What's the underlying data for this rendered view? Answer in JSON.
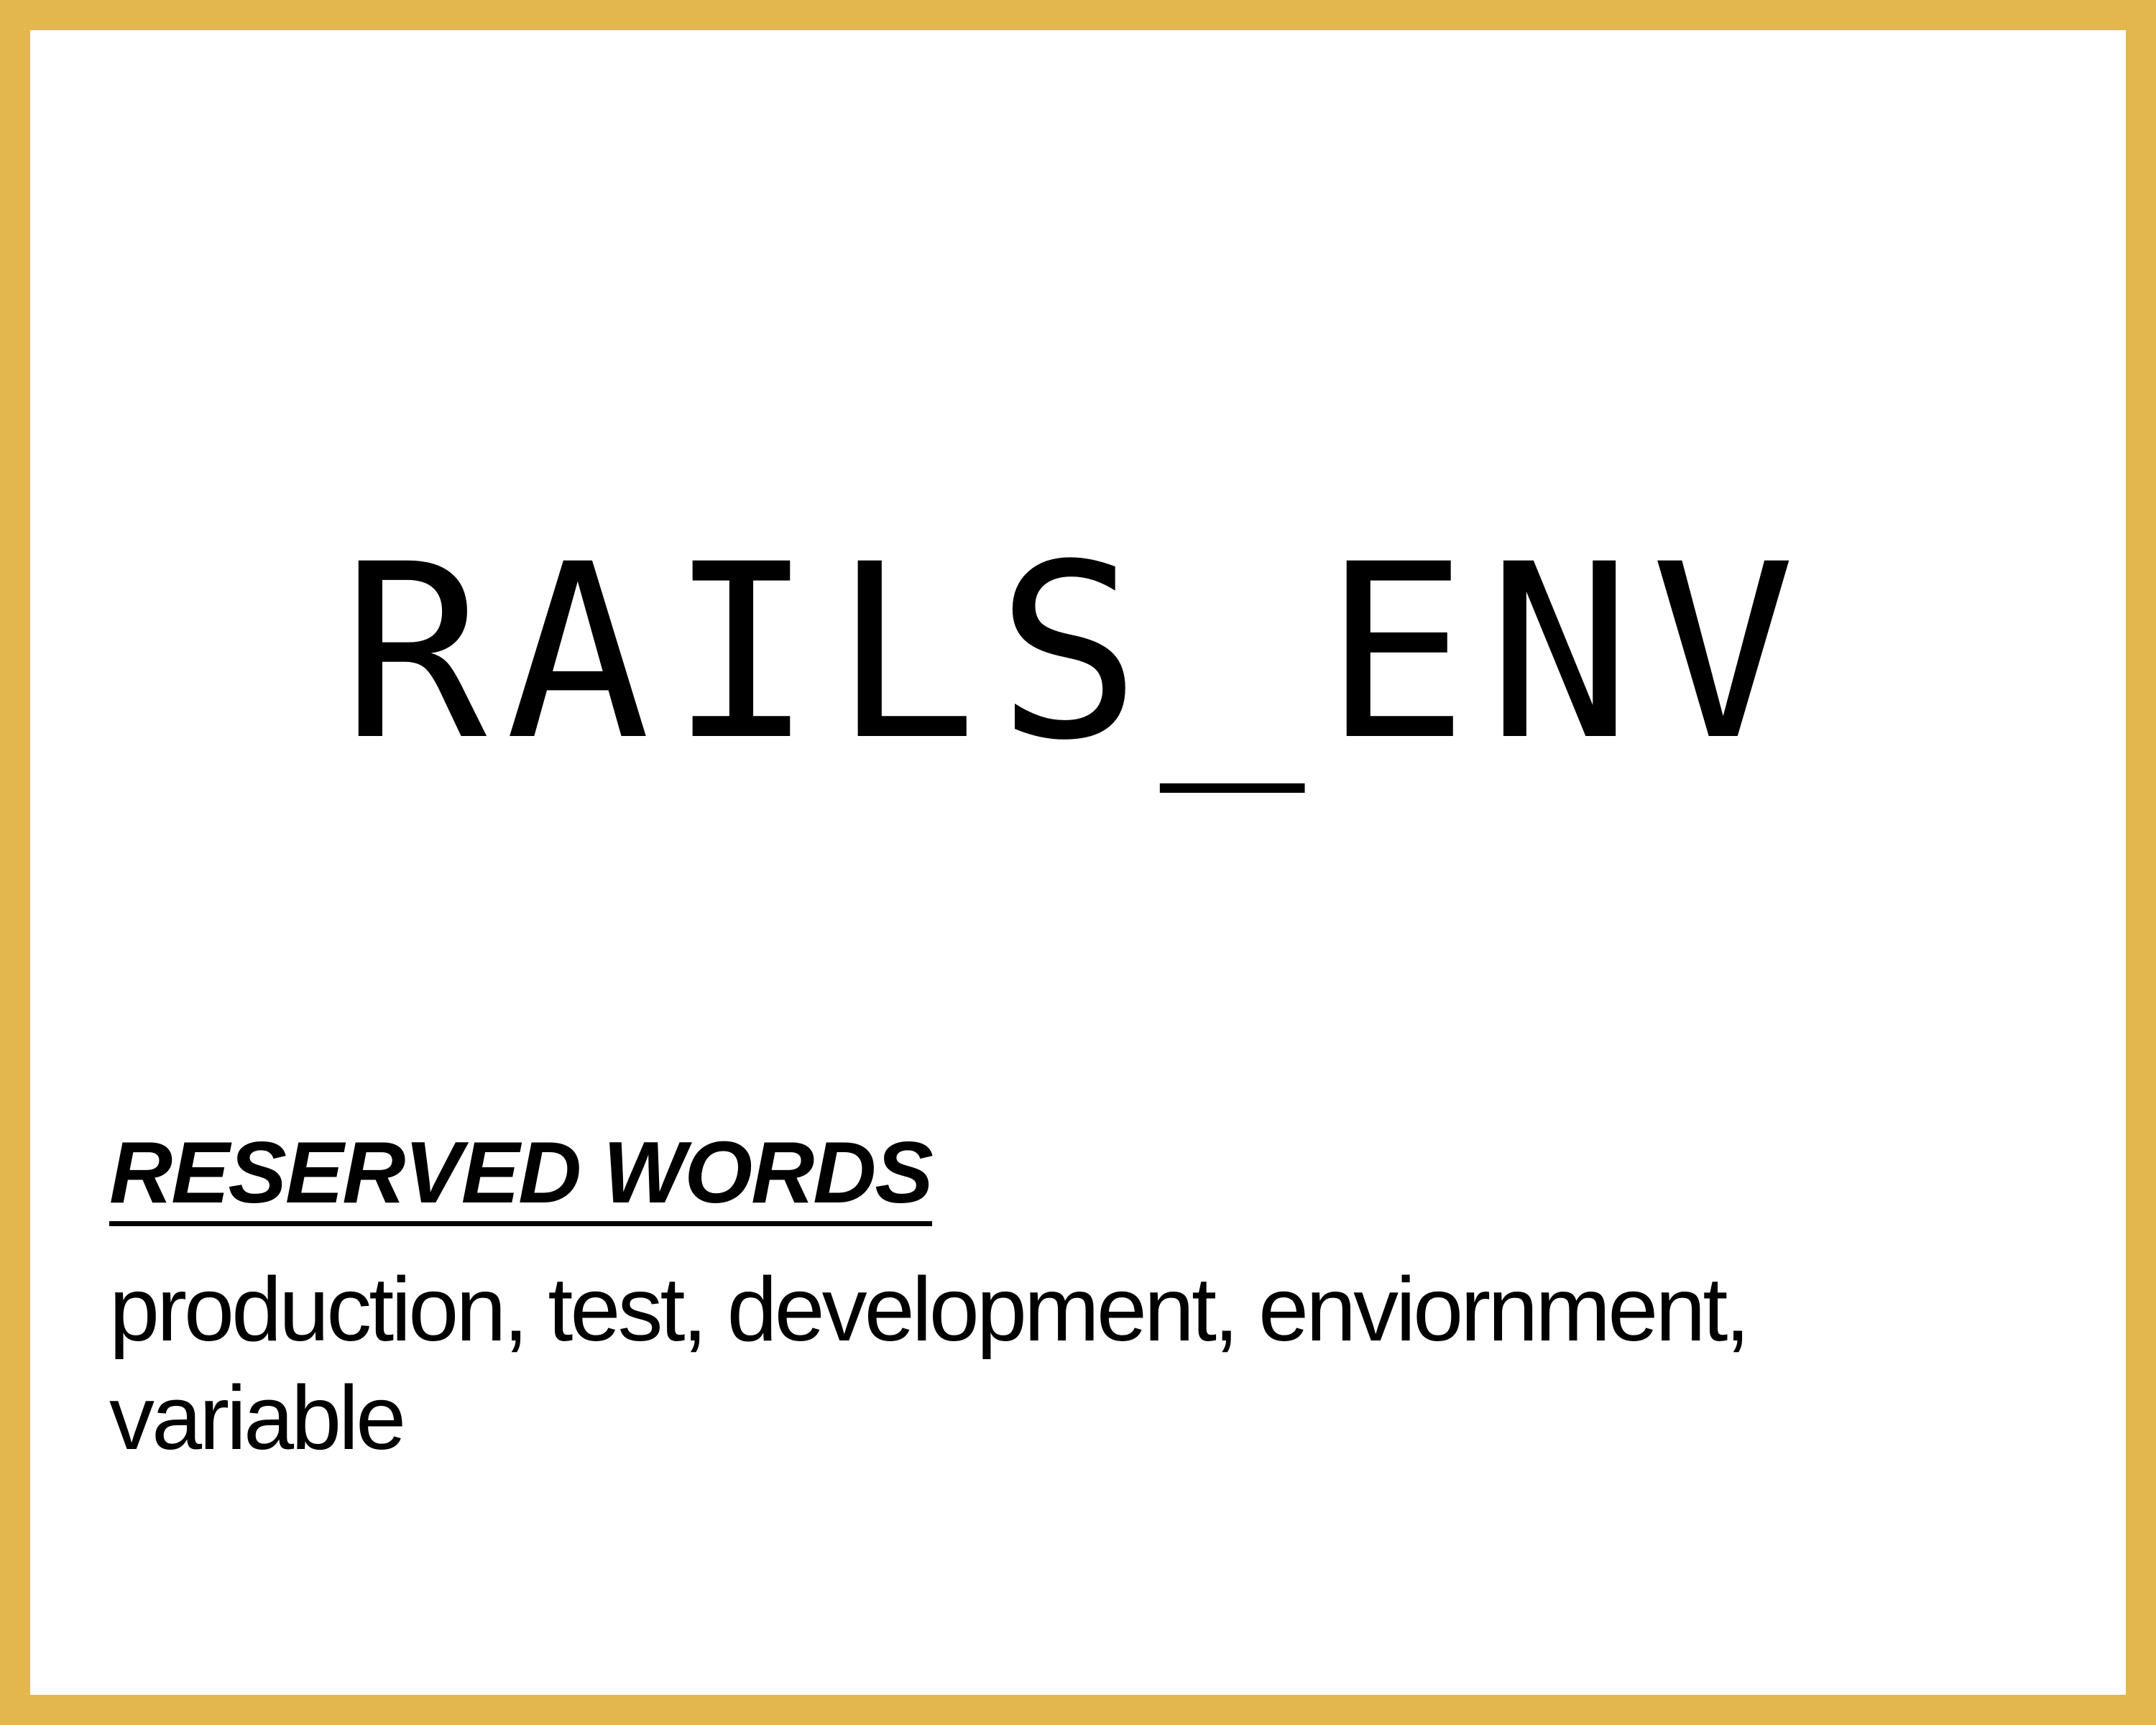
{
  "card": {
    "border_color": "#E3B74E",
    "term": "RAILS_ENV",
    "section_heading": "RESERVED WORDS",
    "section_body": "production, test, development, enviornment, variable"
  }
}
